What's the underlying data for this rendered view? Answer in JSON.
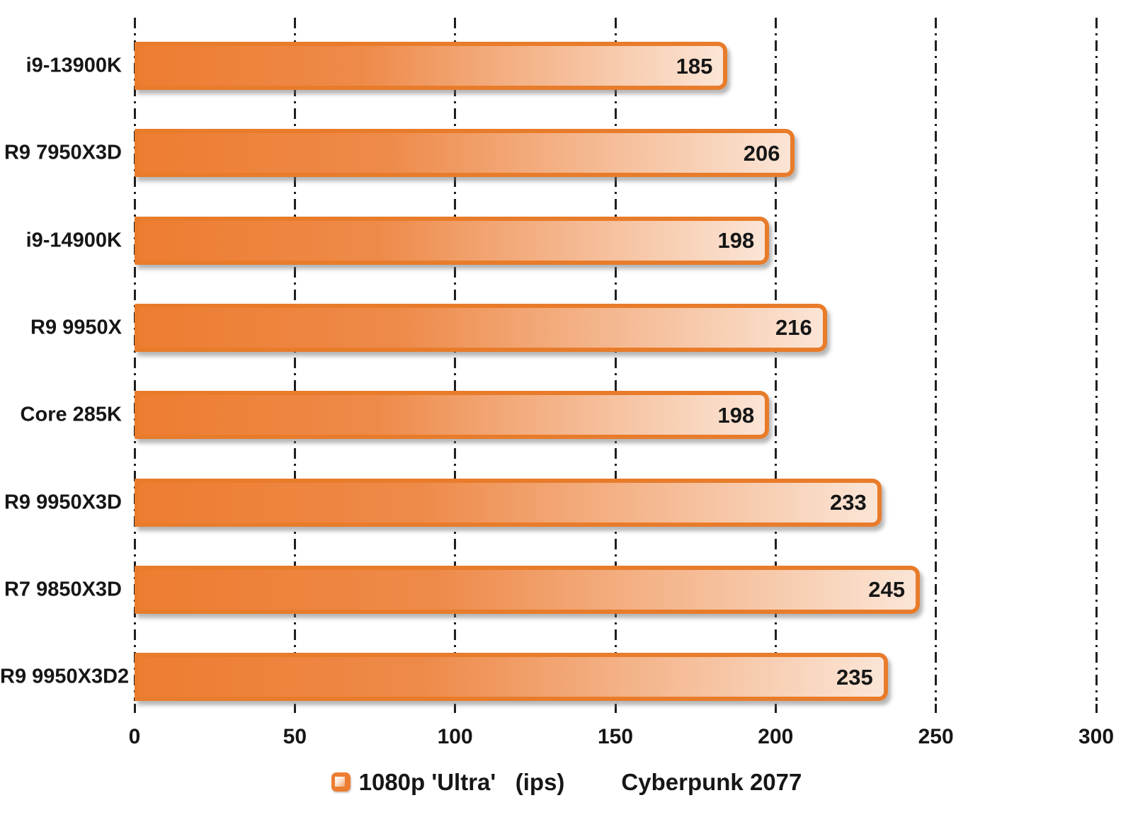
{
  "chart_data": {
    "type": "bar",
    "orientation": "horizontal",
    "title": "Cyberpunk 2077",
    "series_label": "1080p 'Ultra'   (ips)",
    "categories": [
      "i9-13900K",
      "R9 7950X3D",
      "i9-14900K",
      "R9 9950X",
      "Core 285K",
      "R9 9950X3D",
      "R7 9850X3D",
      "R9 9950X3D2"
    ],
    "values": [
      185,
      206,
      198,
      216,
      198,
      233,
      245,
      235
    ],
    "xlabel": "",
    "ylabel": "",
    "xlim": [
      0,
      300
    ],
    "x_ticks": [
      0,
      50,
      100,
      150,
      200,
      250,
      300
    ],
    "grid": "vertical-dash-dot",
    "legend_position": "bottom",
    "colors": {
      "bar_fill_start": "#ED7D31",
      "bar_fill_end": "#FBE5D6",
      "bar_border": "#E87C2B",
      "gridline": "#1F1F1F",
      "text": "#161616",
      "background": "#FFFFFF"
    }
  },
  "legend": {
    "series_label": "1080p 'Ultra'   (ips)",
    "game_title": "Cyberpunk 2077"
  }
}
